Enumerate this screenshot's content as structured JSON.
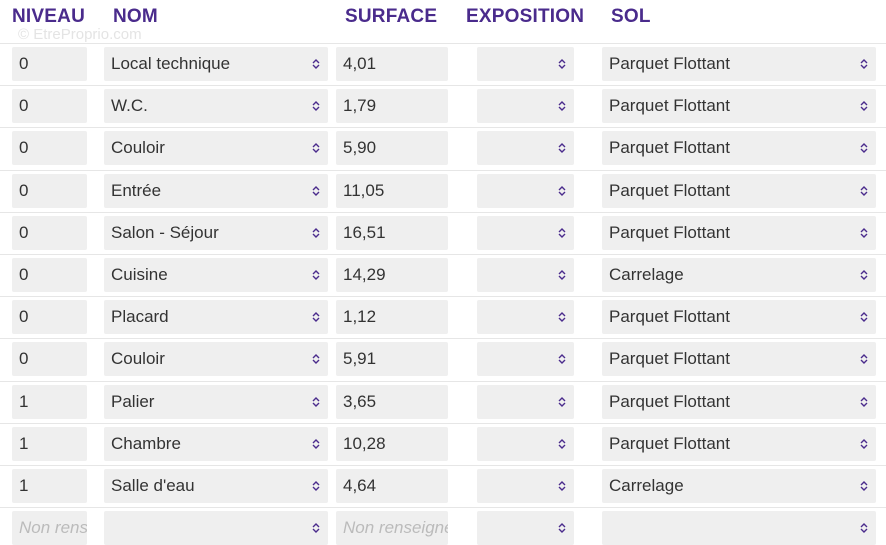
{
  "watermark": "© EtreProprio.com",
  "table": {
    "headers": [
      "NIVEAU",
      "NOM",
      "SURFACE",
      "EXPOSITION",
      "SOL"
    ],
    "rows": [
      [
        "0",
        "Local technique",
        "4,01",
        "Parquet Flottant"
      ],
      [
        "0",
        "W.C.",
        "1,79",
        "Parquet Flottant"
      ],
      [
        "0",
        "Couloir",
        "5,90",
        "Parquet Flottant"
      ],
      [
        "0",
        "Entrée",
        "11,05",
        "Parquet Flottant"
      ],
      [
        "0",
        "Salon - Séjour",
        "16,51",
        "Parquet Flottant"
      ],
      [
        "0",
        "Cuisine",
        "14,29",
        "Carrelage"
      ],
      [
        "0",
        "Placard",
        "1,12",
        "Parquet Flottant"
      ],
      [
        "0",
        "Couloir",
        "5,91",
        "Parquet Flottant"
      ],
      [
        "1",
        "Palier",
        "3,65",
        "Parquet Flottant"
      ],
      [
        "1",
        "Chambre",
        "10,28",
        "Parquet Flottant"
      ],
      [
        "1",
        "Salle d'eau",
        "4,64",
        "Carrelage"
      ]
    ],
    "placeholder": "Non renseigné"
  }
}
